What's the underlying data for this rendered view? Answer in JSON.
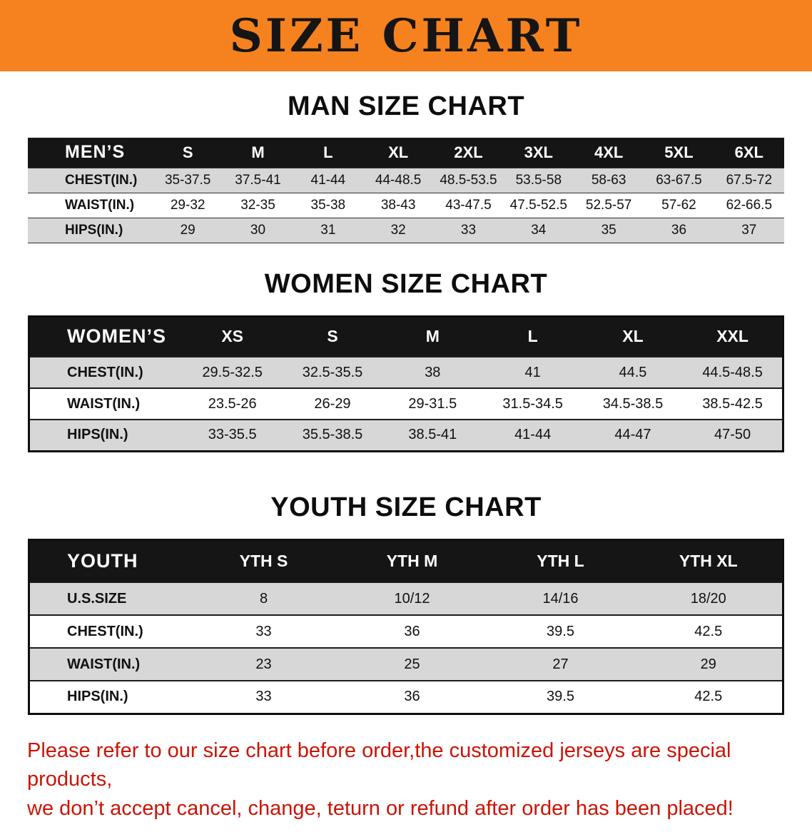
{
  "banner": {
    "title": "SIZE CHART"
  },
  "sections": [
    {
      "id": "men",
      "heading": "MAN SIZE CHART",
      "table": {
        "header": [
          "MEN’S",
          "S",
          "M",
          "L",
          "XL",
          "2XL",
          "3XL",
          "4XL",
          "5XL",
          "6XL"
        ],
        "rows": [
          [
            "CHEST(IN.)",
            "35-37.5",
            "37.5-41",
            "41-44",
            "44-48.5",
            "48.5-53.5",
            "53.5-58",
            "58-63",
            "63-67.5",
            "67.5-72"
          ],
          [
            "WAIST(IN.)",
            "29-32",
            "32-35",
            "35-38",
            "38-43",
            "43-47.5",
            "47.5-52.5",
            "52.5-57",
            "57-62",
            "62-66.5"
          ],
          [
            "HIPS(IN.)",
            "29",
            "30",
            "31",
            "32",
            "33",
            "34",
            "35",
            "36",
            "37"
          ]
        ]
      }
    },
    {
      "id": "women",
      "heading": "WOMEN SIZE CHART",
      "table": {
        "header": [
          "WOMEN’S",
          "XS",
          "S",
          "M",
          "L",
          "XL",
          "XXL"
        ],
        "rows": [
          [
            "CHEST(IN.)",
            "29.5-32.5",
            "32.5-35.5",
            "38",
            "41",
            "44.5",
            "44.5-48.5"
          ],
          [
            "WAIST(IN.)",
            "23.5-26",
            "26-29",
            "29-31.5",
            "31.5-34.5",
            "34.5-38.5",
            "38.5-42.5"
          ],
          [
            "HIPS(IN.)",
            "33-35.5",
            "35.5-38.5",
            "38.5-41",
            "41-44",
            "44-47",
            "47-50"
          ]
        ]
      }
    },
    {
      "id": "youth",
      "heading": "YOUTH SIZE CHART",
      "table": {
        "header": [
          "YOUTH",
          "YTH S",
          "YTH M",
          "YTH L",
          "YTH XL"
        ],
        "rows": [
          [
            "U.S.SIZE",
            "8",
            "10/12",
            "14/16",
            "18/20"
          ],
          [
            "CHEST(IN.)",
            "33",
            "36",
            "39.5",
            "42.5"
          ],
          [
            "WAIST(IN.)",
            "23",
            "25",
            "27",
            "29"
          ],
          [
            "HIPS(IN.)",
            "33",
            "36",
            "39.5",
            "42.5"
          ]
        ]
      }
    }
  ],
  "disclaimer": {
    "line1": "Please refer to our size chart before order,the customized jerseys are special products,",
    "line2": "we don’t accept cancel, change, teturn or refund after order has been placed!"
  },
  "colors": {
    "banner_orange": "#F5821F",
    "table_header_black": "#151515",
    "row_gray": "#D7D7D7",
    "disclaimer_red": "#CB1407"
  }
}
